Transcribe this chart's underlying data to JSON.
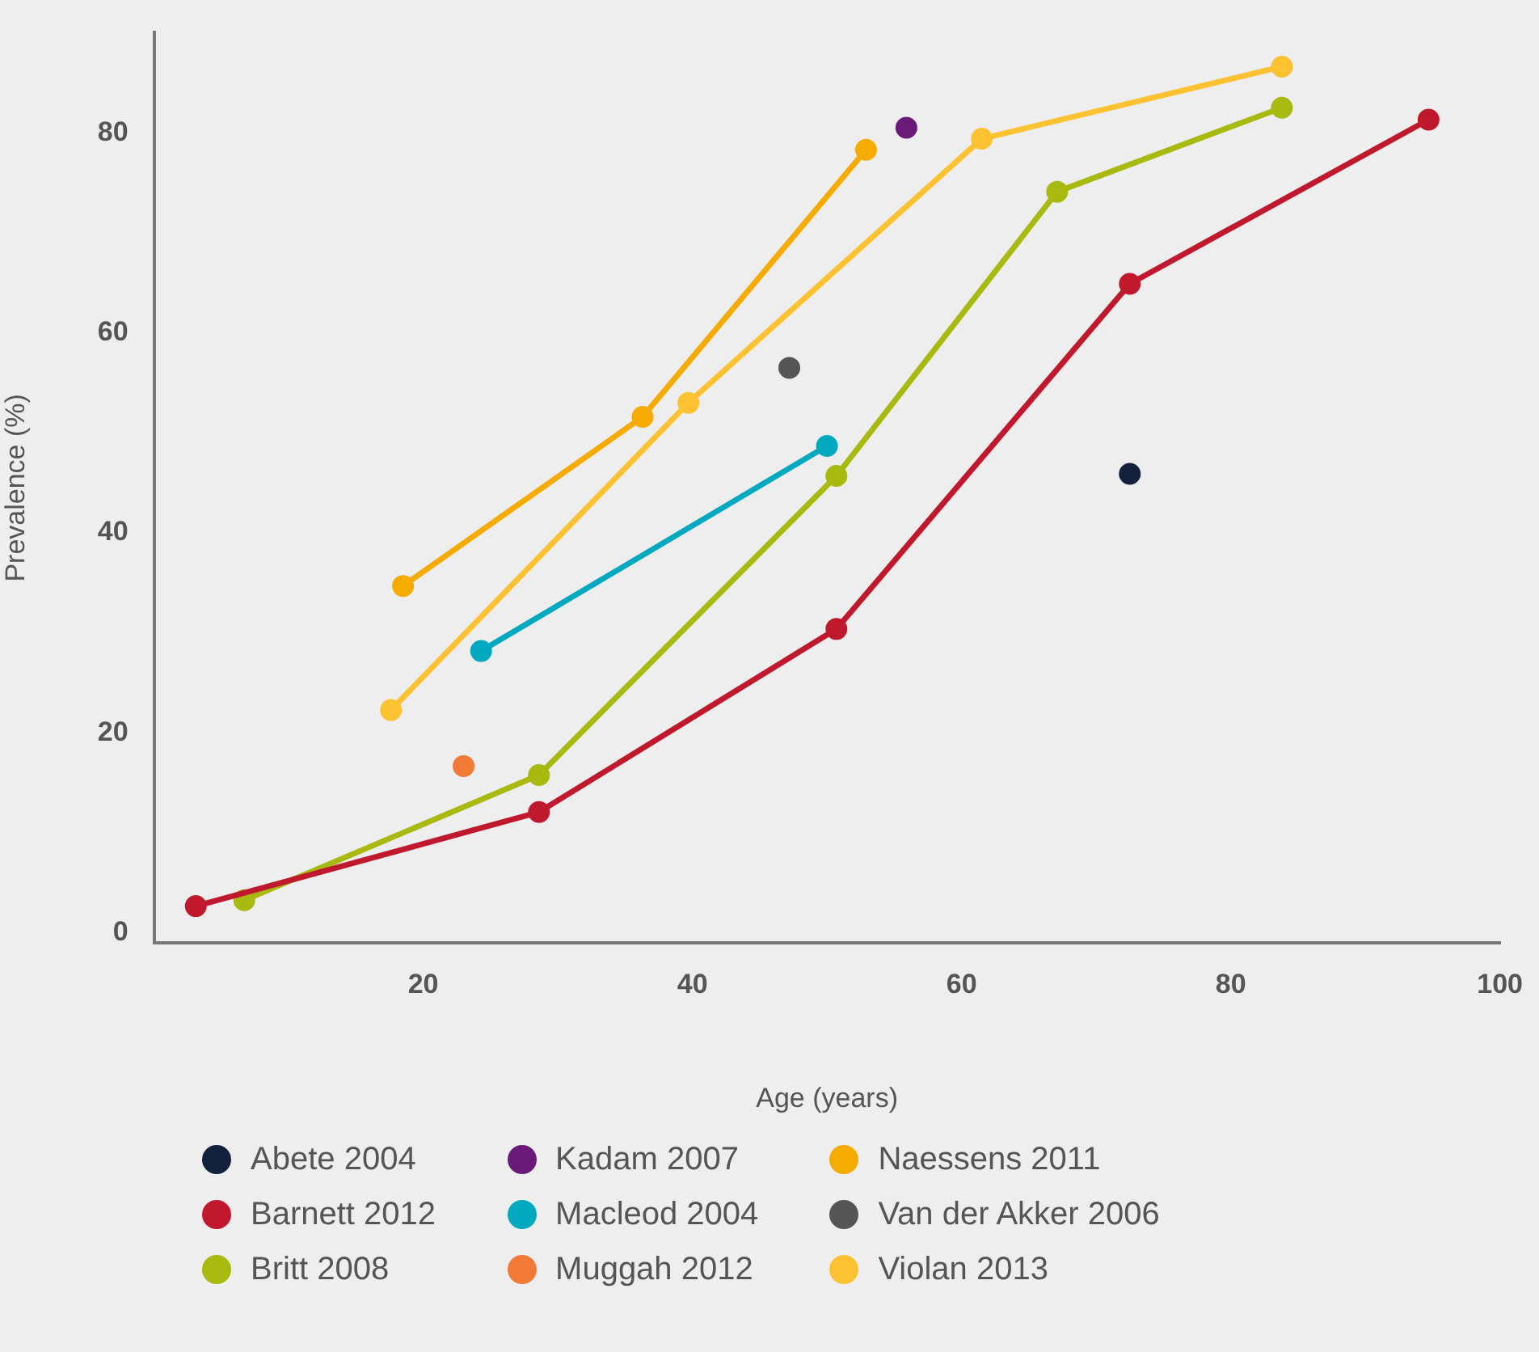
{
  "chart_data": {
    "type": "line",
    "xlabel": "Age (years)",
    "ylabel": "Prevalence (%)",
    "xlim": [
      0,
      100
    ],
    "ylim": [
      -1,
      90
    ],
    "xticks": [
      20,
      40,
      60,
      80,
      100
    ],
    "yticks": [
      0,
      20,
      40,
      60,
      80
    ],
    "grid": false,
    "legend": "bottom",
    "marker": "circle",
    "line_style": "solid",
    "series": [
      {
        "name": "Abete 2004",
        "type": "scatter",
        "color": "#14213d",
        "x": [
          72.5
        ],
        "values": [
          45.9
        ]
      },
      {
        "name": "Barnett 2012",
        "color": "#c0192e",
        "x": [
          3.1,
          28.6,
          50.7,
          72.5,
          94.7
        ],
        "values": [
          2.7,
          12.1,
          30.4,
          64.9,
          81.3
        ]
      },
      {
        "name": "Britt 2008",
        "color": "#a8b90f",
        "x": [
          6.7,
          28.6,
          50.7,
          67.1,
          83.8
        ],
        "values": [
          3.3,
          15.8,
          45.7,
          74.1,
          82.5
        ]
      },
      {
        "name": "Kadam 2007",
        "type": "scatter",
        "color": "#6a1b78",
        "x": [
          55.9
        ],
        "values": [
          80.5
        ]
      },
      {
        "name": "Macleod 2004",
        "color": "#00a8c0",
        "x": [
          24.3,
          50.0
        ],
        "values": [
          28.2,
          48.7
        ]
      },
      {
        "name": "Muggah 2012",
        "type": "scatter",
        "color": "#f07a36",
        "x": [
          23.0
        ],
        "values": [
          16.7
        ]
      },
      {
        "name": "Naessens 2011",
        "color": "#f5ab00",
        "x": [
          18.5,
          36.3,
          52.9
        ],
        "values": [
          34.7,
          51.6,
          78.3
        ]
      },
      {
        "name": "Van der Akker 2006",
        "type": "scatter",
        "color": "#555555",
        "x": [
          47.2
        ],
        "values": [
          56.5
        ]
      },
      {
        "name": "Violan 2013",
        "color": "#fcc232",
        "x": [
          17.6,
          39.7,
          61.5,
          83.8
        ],
        "values": [
          22.3,
          53.0,
          79.4,
          86.6
        ]
      }
    ]
  }
}
